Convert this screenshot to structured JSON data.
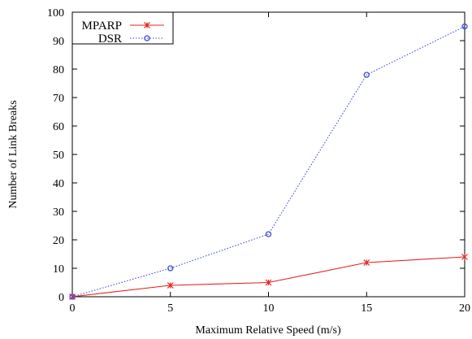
{
  "chart_data": {
    "type": "line",
    "title": "",
    "xlabel": "Maximum Relative Speed (m/s)",
    "ylabel": "Number of Link Breaks",
    "xlim": [
      0,
      20
    ],
    "ylim": [
      0,
      100
    ],
    "xticks": [
      0,
      5,
      10,
      15,
      20
    ],
    "yticks": [
      0,
      10,
      20,
      30,
      40,
      50,
      60,
      70,
      80,
      90,
      100
    ],
    "grid": false,
    "legend_position": "top-left",
    "series": [
      {
        "name": "MPARP",
        "color": "#e8211d",
        "marker": "x-star",
        "line": "solid",
        "x": [
          0,
          5,
          10,
          15,
          20
        ],
        "y": [
          0,
          4,
          5,
          12,
          14
        ]
      },
      {
        "name": "DSR",
        "color": "#3a4bd6",
        "marker": "circle",
        "line": "dotted",
        "x": [
          0,
          5,
          10,
          15,
          20
        ],
        "y": [
          0,
          10,
          22,
          78,
          95
        ]
      }
    ]
  }
}
